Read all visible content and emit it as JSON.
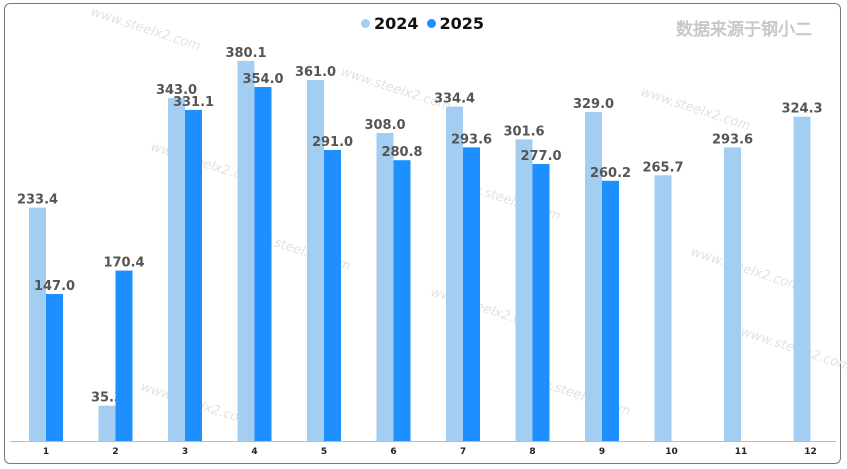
{
  "chart_data": {
    "type": "bar",
    "categories": [
      "1",
      "2",
      "3",
      "4",
      "5",
      "6",
      "7",
      "8",
      "9",
      "10",
      "11",
      "12"
    ],
    "series": [
      {
        "name": "2024",
        "color": "#a3cef1",
        "values": [
          233.4,
          35.3,
          343.0,
          380.1,
          361.0,
          308.0,
          334.4,
          301.6,
          329.0,
          265.7,
          293.6,
          324.3
        ]
      },
      {
        "name": "2025",
        "color": "#1e8fff",
        "values": [
          147.0,
          170.4,
          331.1,
          354.0,
          291.0,
          280.8,
          293.6,
          277.0,
          260.2,
          null,
          null,
          null
        ]
      }
    ],
    "value_labels_2024": [
      "233.4",
      "35.3",
      "343.0",
      "380.1",
      "361.0",
      "308.0",
      "334.4",
      "301.6",
      "329.0",
      "265.7",
      "293.6",
      "324.3"
    ],
    "value_labels_2025": [
      "147.0",
      "170.4",
      "331.1",
      "354.0",
      "291.0",
      "280.8",
      "293.6",
      "277.0",
      "260.2"
    ],
    "ylim": [
      0,
      390
    ],
    "grid": false,
    "legend_position": "top-center"
  },
  "source_label": "数据来源于钢小二",
  "watermark": "www.steelx2.com"
}
